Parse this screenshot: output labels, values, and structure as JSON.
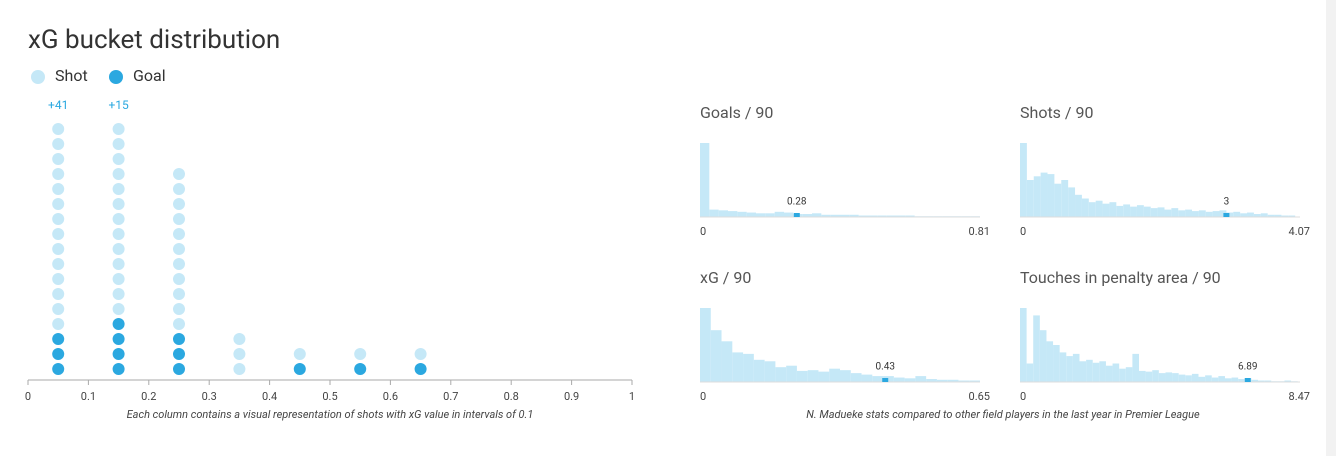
{
  "chart_data": [
    {
      "type": "dot",
      "title": "xG bucket distribution",
      "x": [
        0.05,
        0.15,
        0.25,
        0.35,
        0.45,
        0.55,
        0.65
      ],
      "series": [
        {
          "name": "Shot",
          "color": "#c5e8f7",
          "values": [
            14,
            13,
            11,
            3,
            1,
            1,
            1
          ]
        },
        {
          "name": "Goal",
          "color": "#2ba8e0",
          "values": [
            3,
            4,
            3,
            0,
            1,
            1,
            1
          ]
        }
      ],
      "overflow_labels": [
        "+41",
        "+15",
        null,
        null,
        null,
        null,
        null
      ],
      "xlim": [
        0,
        1
      ],
      "xticks": [
        0,
        0.1,
        0.2,
        0.3,
        0.4,
        0.5,
        0.6,
        0.7,
        0.8,
        0.9,
        1
      ],
      "note": "Each column contains a visual representation of shots with xG value in intervals of 0.1"
    },
    {
      "type": "histogram",
      "title": "Goals / 90",
      "color": "#c5e8f7",
      "marker_color": "#2ba8e0",
      "bins": [
        0,
        0.027,
        0.054,
        0.081,
        0.108,
        0.135,
        0.162,
        0.189,
        0.216,
        0.243,
        0.27,
        0.297,
        0.324,
        0.351,
        0.378,
        0.405,
        0.432,
        0.459,
        0.486,
        0.513,
        0.54,
        0.567,
        0.594,
        0.621,
        0.648,
        0.675,
        0.702,
        0.729,
        0.756,
        0.783,
        0.81
      ],
      "counts": [
        100,
        10,
        9,
        8,
        7,
        6,
        5,
        5,
        7,
        6,
        4,
        4,
        5,
        3,
        3,
        3,
        3,
        2,
        2,
        2,
        2,
        2,
        2,
        1,
        1,
        1,
        1,
        1,
        1,
        1
      ],
      "marker": 0.28,
      "xlim": [
        0,
        0.81
      ],
      "xticks": [
        0,
        0.81
      ],
      "ylim": [
        0,
        100
      ]
    },
    {
      "type": "histogram",
      "title": "Shots / 90",
      "color": "#c5e8f7",
      "marker_color": "#2ba8e0",
      "bins": [
        0,
        0.1,
        0.2,
        0.3,
        0.4,
        0.5,
        0.6,
        0.7,
        0.8,
        0.9,
        1,
        1.1,
        1.2,
        1.3,
        1.4,
        1.5,
        1.6,
        1.7,
        1.8,
        1.9,
        2,
        2.1,
        2.2,
        2.3,
        2.4,
        2.5,
        2.6,
        2.7,
        2.8,
        2.9,
        3,
        3.1,
        3.2,
        3.3,
        3.4,
        3.5,
        3.6,
        3.7,
        3.8,
        3.9,
        4
      ],
      "counts": [
        100,
        50,
        55,
        60,
        58,
        45,
        50,
        40,
        30,
        25,
        20,
        22,
        18,
        20,
        15,
        17,
        14,
        16,
        14,
        12,
        13,
        10,
        12,
        9,
        10,
        8,
        9,
        7,
        8,
        9,
        6,
        7,
        5,
        6,
        4,
        5,
        3,
        3,
        2,
        2
      ],
      "marker": 3,
      "xlim": [
        0,
        4.07
      ],
      "xticks": [
        0,
        4.07
      ],
      "ylim": [
        0,
        100
      ]
    },
    {
      "type": "histogram",
      "title": "xG / 90",
      "color": "#c5e8f7",
      "marker_color": "#2ba8e0",
      "bins": [
        0,
        0.025,
        0.05,
        0.075,
        0.1,
        0.125,
        0.15,
        0.175,
        0.2,
        0.225,
        0.25,
        0.275,
        0.3,
        0.325,
        0.35,
        0.375,
        0.4,
        0.425,
        0.45,
        0.475,
        0.5,
        0.525,
        0.55,
        0.575,
        0.6,
        0.625,
        0.65
      ],
      "counts": [
        100,
        70,
        55,
        40,
        38,
        30,
        28,
        20,
        22,
        15,
        16,
        14,
        18,
        16,
        12,
        10,
        8,
        8,
        6,
        5,
        8,
        4,
        3,
        3,
        2,
        2
      ],
      "marker": 0.43,
      "xlim": [
        0,
        0.65
      ],
      "xticks": [
        0,
        0.65
      ],
      "ylim": [
        0,
        100
      ]
    },
    {
      "type": "histogram",
      "title": "Touches in penalty area / 90",
      "color": "#c5e8f7",
      "marker_color": "#2ba8e0",
      "bins": [
        0,
        0.2,
        0.4,
        0.6,
        0.8,
        1,
        1.2,
        1.4,
        1.6,
        1.8,
        2,
        2.2,
        2.4,
        2.6,
        2.8,
        3,
        3.2,
        3.4,
        3.6,
        3.8,
        4,
        4.2,
        4.4,
        4.6,
        4.8,
        5,
        5.2,
        5.4,
        5.6,
        5.8,
        6,
        6.2,
        6.4,
        6.6,
        6.8,
        7,
        7.2,
        7.4,
        7.6,
        7.8,
        8,
        8.2,
        8.4
      ],
      "counts": [
        100,
        25,
        90,
        70,
        55,
        50,
        40,
        35,
        38,
        28,
        30,
        26,
        28,
        22,
        25,
        18,
        20,
        38,
        15,
        14,
        16,
        12,
        13,
        12,
        10,
        9,
        11,
        7,
        9,
        6,
        8,
        5,
        6,
        4,
        5,
        3,
        2,
        2,
        1,
        1,
        2,
        1
      ],
      "marker": 6.89,
      "xlim": [
        0,
        8.47
      ],
      "xticks": [
        0,
        8.47
      ],
      "ylim": [
        0,
        100
      ]
    }
  ],
  "note": "N. Madueke stats compared to other field players in the last year in Premier League"
}
